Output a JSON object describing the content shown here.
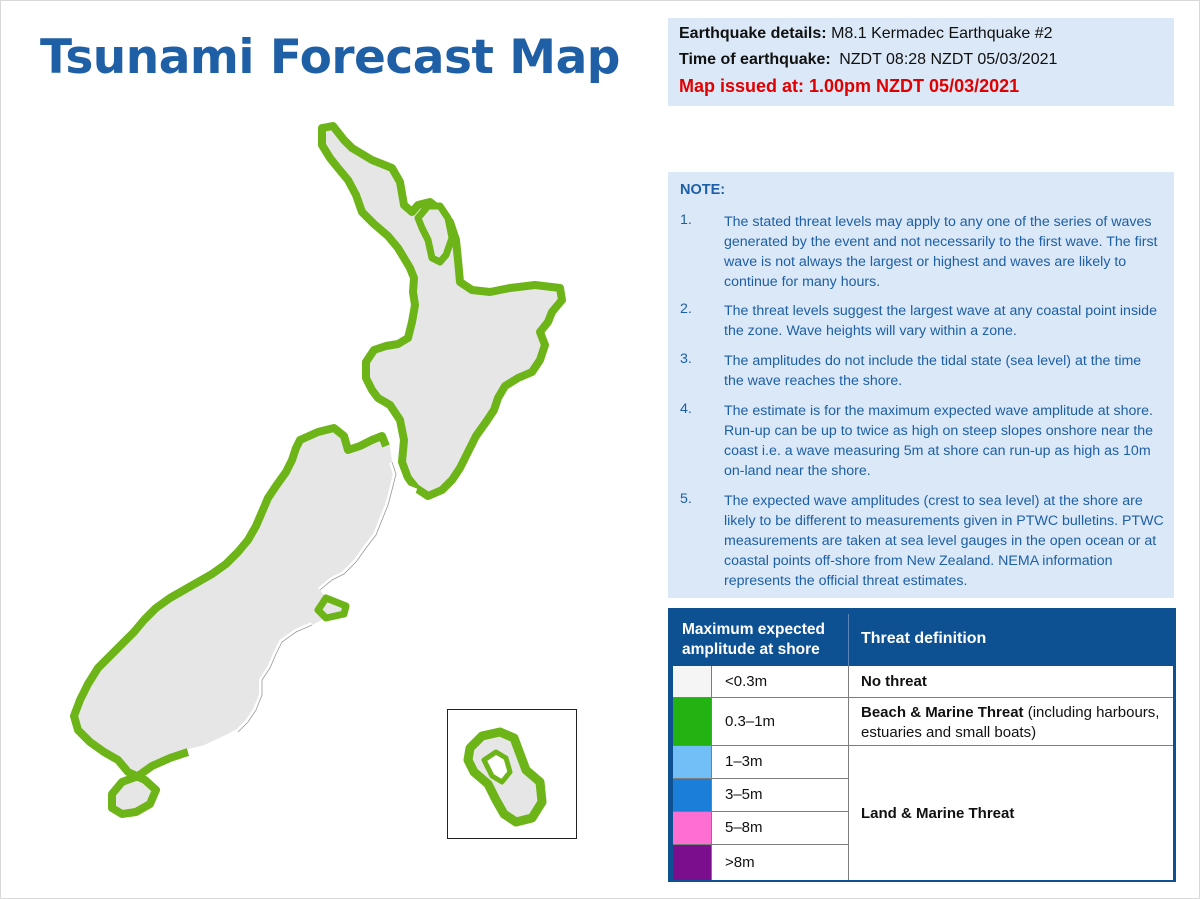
{
  "title": "Tsunami Forecast Map",
  "details": {
    "earthquake_label": "Earthquake details:",
    "earthquake_value": "M8.1 Kermadec Earthquake #2",
    "time_label": "Time of earthquake:",
    "time_value": "NZDT 08:28 NZDT 05/03/2021",
    "issued": "Map issued at: 1.00pm NZDT 05/03/2021"
  },
  "note": {
    "heading": "NOTE:",
    "items": [
      {
        "num": "1.",
        "text": "The stated threat levels may apply to any one of the series of waves generated by the event and not necessarily to the first wave. The first wave is not always the largest or highest and waves are likely to continue for many hours."
      },
      {
        "num": "2.",
        "text": "The threat levels suggest the largest wave at any coastal point inside the zone. Wave heights will vary within a zone."
      },
      {
        "num": "3.",
        "text": "The amplitudes do not include the tidal state (sea level) at the time the wave reaches the shore."
      },
      {
        "num": "4.",
        "text": "The estimate is for the maximum expected wave amplitude at shore. Run-up can be up to twice as high on steep slopes onshore near the coast i.e. a wave measuring 5m at shore can run-up as high as 10m on-land near the shore."
      },
      {
        "num": "5.",
        "text": "The expected wave amplitudes (crest to sea level) at the shore are likely to be different to measurements given in PTWC bulletins. PTWC measurements are taken at sea level gauges in the open ocean or at coastal points off-shore from New Zealand. NEMA information represents the official threat estimates."
      }
    ]
  },
  "legend": {
    "col1_header": "Maximum expected amplitude at shore",
    "col2_header": "Threat definition",
    "rows": [
      {
        "amplitude": "<0.3m",
        "color": "#f5f5f5"
      },
      {
        "amplitude": "0.3–1m",
        "color": "#22b312"
      },
      {
        "amplitude": "1–3m",
        "color": "#72bff7"
      },
      {
        "amplitude": "3–5m",
        "color": "#1b7fd9"
      },
      {
        "amplitude": "5–8m",
        "color": "#ff6fd3"
      },
      {
        "amplitude": ">8m",
        "color": "#7a0e8c"
      }
    ],
    "defs": {
      "no_threat": "No threat",
      "beach_bold": "Beach & Marine Threat",
      "beach_rest": " (including harbours, estuaries and small boats)",
      "land": "Land & Marine Threat"
    }
  },
  "map": {
    "land_color": "#e6e6e6",
    "threat_color": "#6cb418",
    "no_threat_color": "#ffffff"
  }
}
